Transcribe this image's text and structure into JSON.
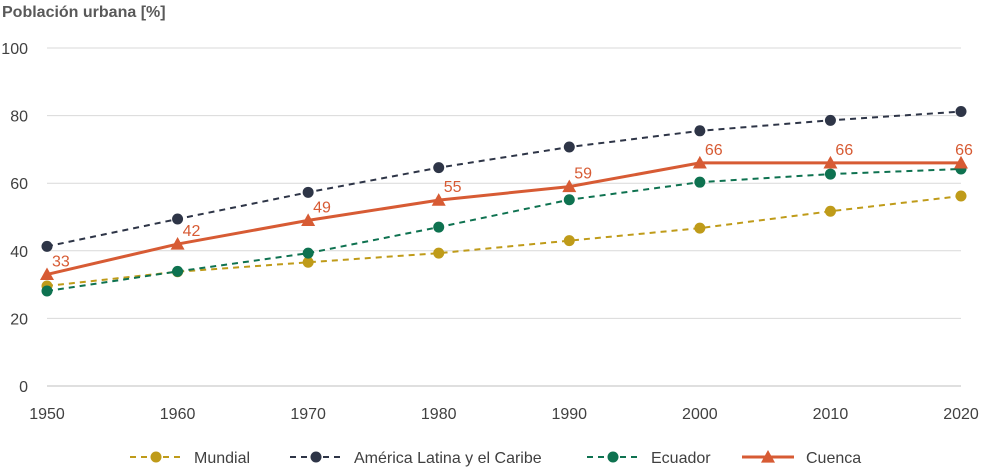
{
  "chart_data": {
    "type": "line",
    "title": "Población urbana [%]",
    "xlabel": "",
    "ylabel": "",
    "x": [
      1950,
      1960,
      1970,
      1980,
      1990,
      2000,
      2010,
      2020
    ],
    "x_tick_labels": [
      "1950",
      "1960",
      "1970",
      "1980",
      "1990",
      "2000",
      "2010",
      "2020"
    ],
    "ylim": [
      0,
      100
    ],
    "y_ticks": [
      0,
      20,
      40,
      60,
      80,
      100
    ],
    "y_tick_labels": [
      "0",
      "20",
      "40",
      "60",
      "80",
      "100"
    ],
    "grid": true,
    "legend_position": "bottom",
    "series": [
      {
        "name": "Mundial",
        "values": [
          29.6,
          33.8,
          36.6,
          39.3,
          43.0,
          46.7,
          51.7,
          56.2
        ],
        "color": "#BF9B19",
        "dashed": true,
        "marker": "circle",
        "data_labels": null
      },
      {
        "name": "América Latina y el Caribe",
        "values": [
          41.3,
          49.4,
          57.3,
          64.6,
          70.7,
          75.5,
          78.6,
          81.2
        ],
        "color": "#2E3547",
        "dashed": true,
        "marker": "circle",
        "data_labels": null
      },
      {
        "name": "Ecuador",
        "values": [
          28.1,
          33.9,
          39.3,
          47.0,
          55.1,
          60.3,
          62.7,
          64.2
        ],
        "color": "#0E7250",
        "dashed": true,
        "marker": "circle",
        "data_labels": null
      },
      {
        "name": "Cuenca",
        "values": [
          33,
          42,
          49,
          55,
          59,
          66,
          66,
          66
        ],
        "color": "#D75B34",
        "dashed": false,
        "marker": "triangle",
        "data_labels": [
          "33",
          "42",
          "49",
          "55",
          "59",
          "66",
          "66",
          "66"
        ]
      }
    ]
  }
}
